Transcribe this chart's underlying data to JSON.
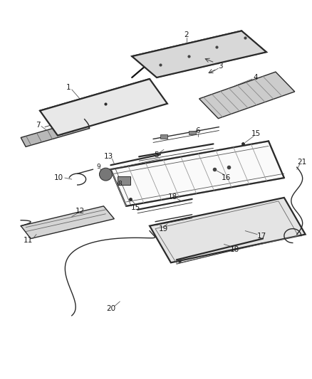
{
  "bg_color": "#ffffff",
  "line_color": "#2a2a2a",
  "label_color": "#1a1a1a",
  "lw_thin": 0.6,
  "lw_med": 1.0,
  "lw_thick": 1.6,
  "figsize": [
    4.38,
    5.33
  ],
  "dpi": 100
}
